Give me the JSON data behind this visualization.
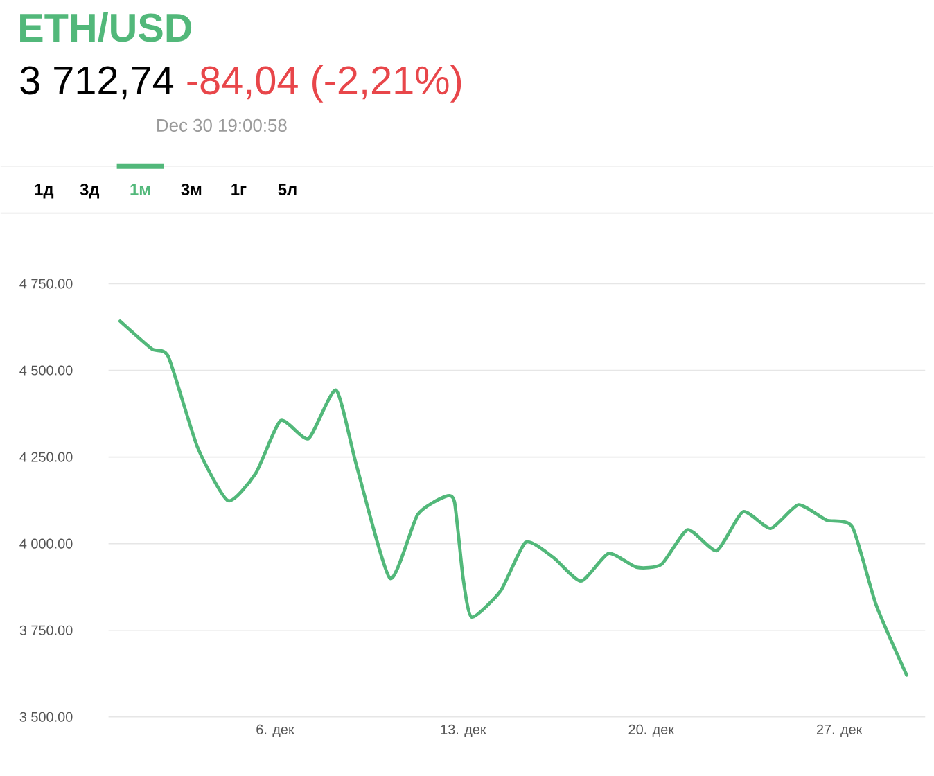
{
  "chart_data": {
    "type": "line",
    "title": "ETH/USD",
    "annotations": [
      "3 712,74",
      "-84,04 (-2,21%)",
      "Dec 30 19:00:58",
      "1д",
      "3д",
      "1м",
      "3м",
      "1г",
      "5л"
    ],
    "x": [
      0.23,
      1.41,
      2.03,
      3.11,
      4.25,
      5.28,
      6.21,
      7.24,
      8.27,
      9.04,
      10.28,
      11.31,
      12.34,
      12.68,
      13.0,
      13.32,
      14.4,
      15.33,
      16.36,
      17.39,
      18.42,
      19.45,
      20.38,
      21.36,
      22.44,
      23.42,
      24.45,
      25.48,
      26.52,
      27.49,
      28.37,
      29.51
    ],
    "values": [
      4642,
      4562,
      4539,
      4279,
      4124,
      4203,
      4355,
      4303,
      4443,
      4223,
      3900,
      4084,
      4136,
      4120,
      3900,
      3788,
      3864,
      4004,
      3960,
      3892,
      3972,
      3932,
      3940,
      4040,
      3980,
      4092,
      4044,
      4112,
      4068,
      4048,
      3824,
      3621
    ],
    "color": "#52b87a",
    "xlim": [
      -0.2,
      30.2
    ],
    "xticks": [
      {
        "value": 6,
        "label": "6. дек"
      },
      {
        "value": 13,
        "label": "13. дек"
      },
      {
        "value": 20,
        "label": "20. дек"
      },
      {
        "value": 27,
        "label": "27. дек"
      }
    ],
    "ylim": [
      3500,
      4750
    ],
    "yticks": [
      {
        "value": 3500,
        "label": "3 500.00"
      },
      {
        "value": 3750,
        "label": "3 750.00"
      },
      {
        "value": 4000,
        "label": "4 000.00"
      },
      {
        "value": 4250,
        "label": "4 250.00"
      },
      {
        "value": 4500,
        "label": "4 500.00"
      },
      {
        "value": 4750,
        "label": "4 750.00"
      }
    ],
    "grid": "y",
    "marker": "none",
    "line_style": "solid"
  }
}
